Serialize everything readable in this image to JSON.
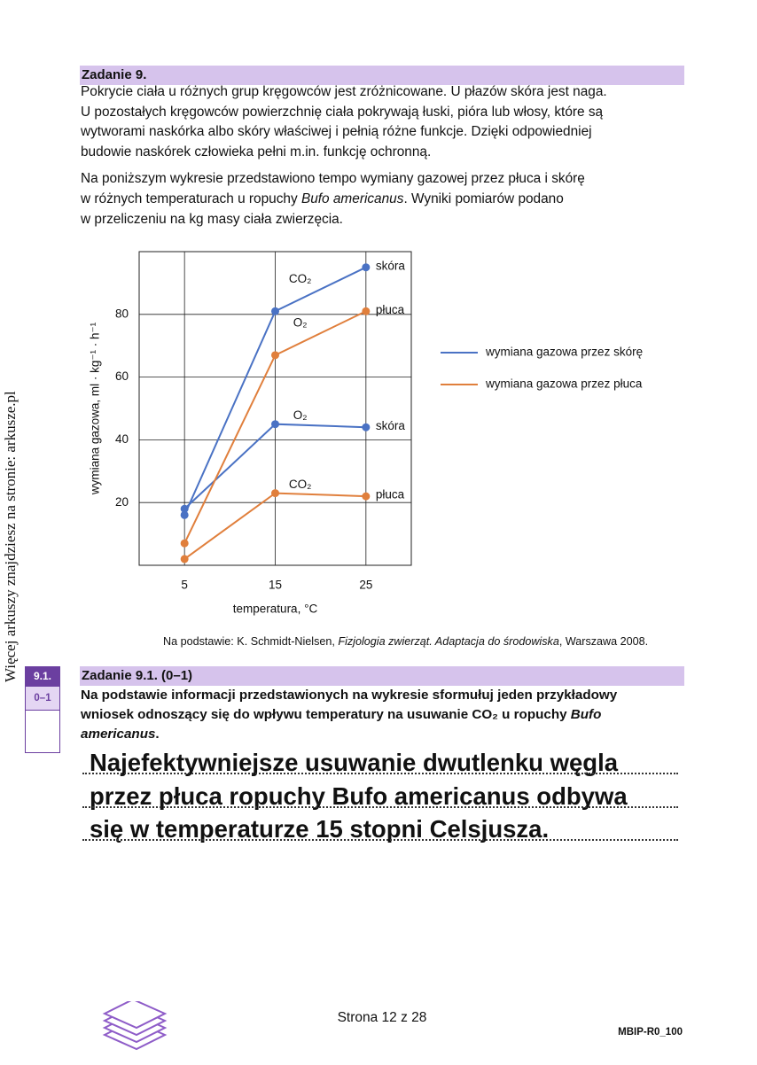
{
  "side_note": "Więcej arkuszy znajdziesz na stronie: arkusze.pl",
  "task": {
    "title": "Zadanie 9.",
    "paragraphs": [
      [
        [
          "Pokrycie ciała u różnych grup kręgowców jest zróżnicowane. U płazów skóra jest naga."
        ],
        [
          "U pozostałych kręgowców powierzchnię ciała pokrywają łuski, pióra lub włosy, które są"
        ],
        [
          "wytworami naskórka albo skóry właściwej i pełnią różne funkcje. Dzięki odpowiedniej"
        ],
        [
          "budowie naskórek człowieka pełni m.in. funkcję ochronną."
        ]
      ],
      [
        [
          "Na poniższym wykresie przedstawiono tempo wymiany gazowej przez płuca i skórę"
        ],
        [
          "w różnych temperaturach u ropuchy ",
          {
            "text": "Bufo americanus",
            "italic": true
          },
          ". Wyniki pomiarów podano"
        ],
        [
          "w przeliczeniu na kg masy ciała zwierzęcia."
        ]
      ]
    ]
  },
  "chart_data": {
    "type": "line",
    "y_label": "wymiana gazowa, ml · kg⁻¹ · h⁻¹",
    "x_label": "temperatura, °C",
    "x": [
      5,
      15,
      25
    ],
    "xlim": [
      0,
      30
    ],
    "xticks": [
      5,
      15,
      25
    ],
    "ylim": [
      0,
      100
    ],
    "yticks": [
      20,
      40,
      60,
      80
    ],
    "grid": true,
    "legend": "right",
    "series": [
      {
        "name": "wymiana gazowa przez skórę",
        "color": "#4a72c4",
        "lines": [
          {
            "gas": "CO₂",
            "label": "skóra",
            "values": [
              16,
              81,
              95
            ]
          },
          {
            "gas": "O₂",
            "label": "skóra",
            "values": [
              18,
              45,
              44
            ]
          }
        ]
      },
      {
        "name": "wymiana gazowa przez płuca",
        "color": "#e07f3c",
        "lines": [
          {
            "gas": "O₂",
            "label": "płuca",
            "values": [
              7,
              67,
              81
            ]
          },
          {
            "gas": "CO₂",
            "label": "płuca",
            "values": [
              2,
              23,
              22
            ]
          }
        ]
      }
    ]
  },
  "source": [
    "Na podstawie: K. Schmidt-Nielsen, ",
    {
      "text": "Fizjologia zwierząt. Adaptacja do środowiska",
      "italic": true
    },
    ", Warszawa 2008."
  ],
  "subtask": {
    "number": "9.1.",
    "points": "0–1",
    "title": "Zadanie 9.1. (0–1)",
    "question": [
      [
        "Na podstawie informacji przedstawionych na wykresie sformułuj jeden przykładowy"
      ],
      [
        "wniosek odnoszący się do wpływu temperatury na usuwanie CO₂ u ropuchy ",
        {
          "text": "Bufo",
          "italic": true
        }
      ],
      [
        {
          "text": "americanus",
          "italic": true
        },
        "."
      ]
    ]
  },
  "answer": [
    "Najefektywniejsze usuwanie dwutlenku węgla",
    "przez płuca ropuchy Bufo americanus odbywa",
    "się w temperaturze 15 stopni Celsjusza."
  ],
  "footer": {
    "page": "Strona 12 z 28",
    "code": "MBIP-R0_100"
  }
}
